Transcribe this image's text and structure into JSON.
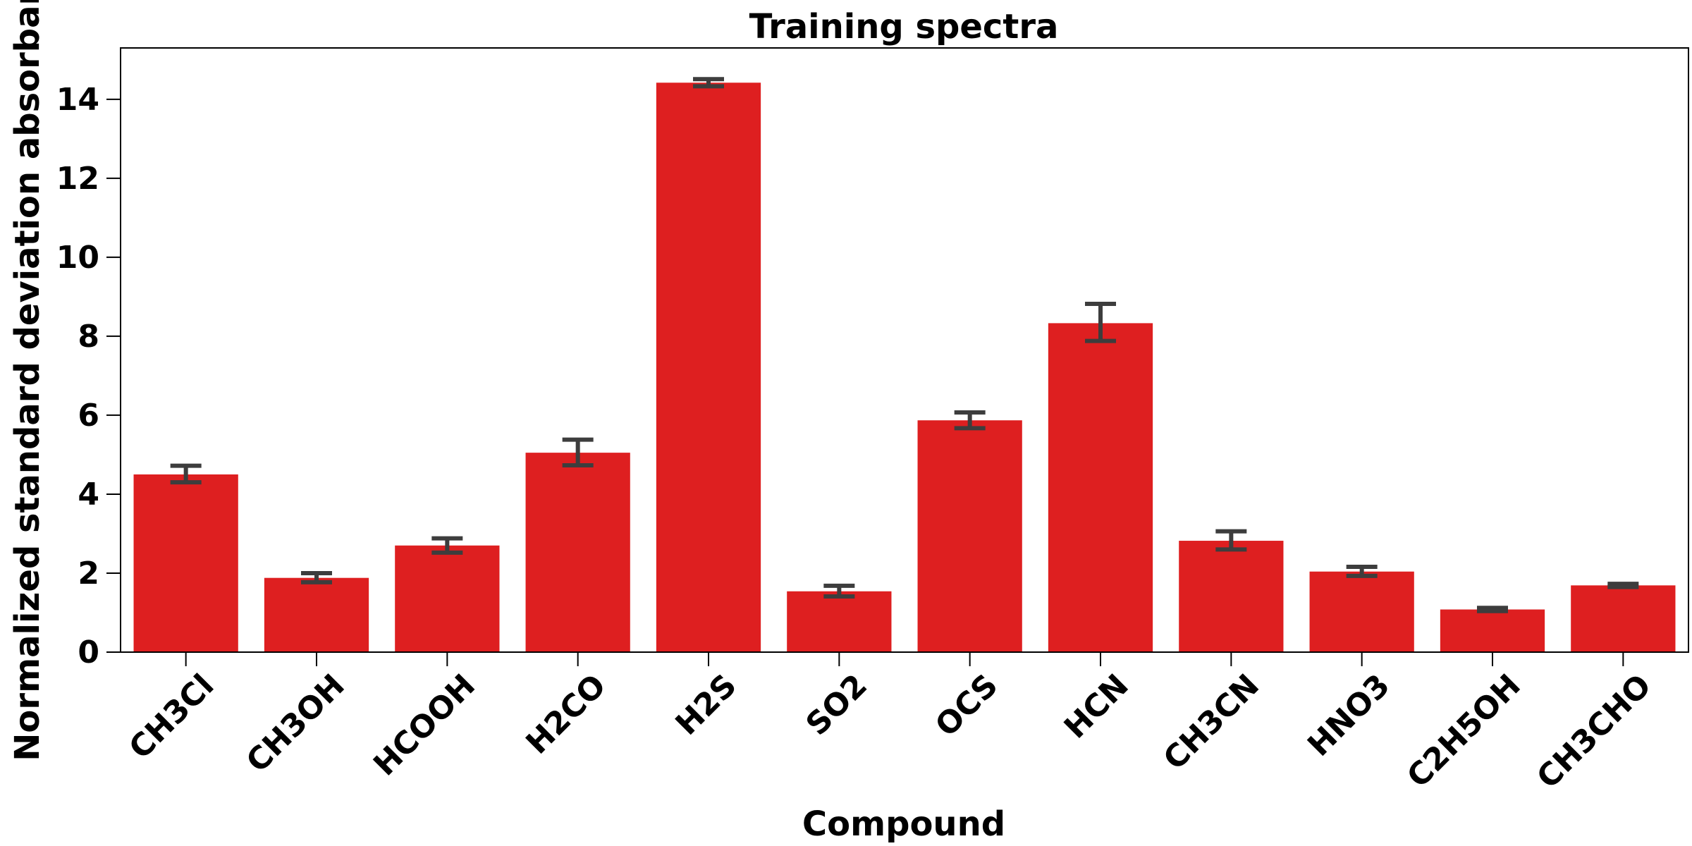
{
  "chart_data": {
    "type": "bar",
    "title": "Training spectra",
    "xlabel": "Compound",
    "ylabel": "Normalized standard deviation absorbance",
    "categories": [
      "CH3Cl",
      "CH3OH",
      "HCOOH",
      "H2CO",
      "H2S",
      "SO2",
      "OCS",
      "HCN",
      "CH3CN",
      "HNO3",
      "C2H5OH",
      "CH3CHO"
    ],
    "values": [
      4.5,
      1.88,
      2.7,
      5.05,
      14.42,
      1.54,
      5.87,
      8.33,
      2.82,
      2.04,
      1.08,
      1.69
    ],
    "error_low": [
      4.3,
      1.77,
      2.52,
      4.73,
      14.33,
      1.41,
      5.67,
      7.88,
      2.6,
      1.93,
      1.04,
      1.65
    ],
    "error_high": [
      4.72,
      2.0,
      2.88,
      5.38,
      14.51,
      1.68,
      6.07,
      8.82,
      3.06,
      2.16,
      1.12,
      1.73
    ],
    "ylim": [
      0,
      15.3
    ],
    "yticks": [
      0,
      2,
      4,
      6,
      8,
      10,
      12,
      14
    ],
    "bar_color": "#de1f20",
    "error_color": "#3d3d3d",
    "grid": false
  }
}
